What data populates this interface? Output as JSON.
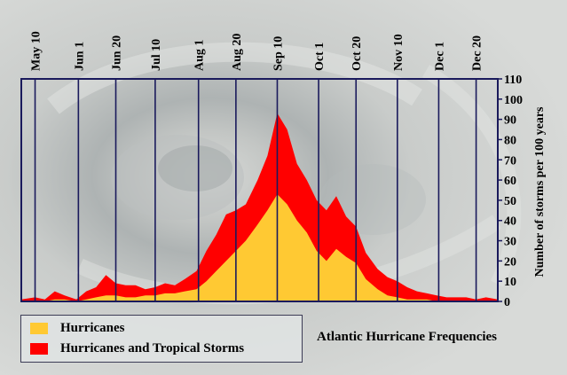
{
  "colors": {
    "hurricanes": "#ffc933",
    "storms": "#ff0000",
    "axis": "#1a1a5c",
    "text": "#000000"
  },
  "legend": {
    "hurricanes": "Hurricanes",
    "storms": "Hurricanes and Tropical Storms"
  },
  "chart_data": {
    "type": "area",
    "title": "Atlantic Hurricane Frequencies",
    "ylabel": "Number of storms per 100 years",
    "xlabel": "",
    "ylim": [
      0,
      110
    ],
    "x_range": [
      "May 3",
      "Dec 31"
    ],
    "yticks": [
      0,
      10,
      20,
      30,
      40,
      50,
      60,
      70,
      80,
      90,
      100,
      110
    ],
    "xticks": [
      "May 10",
      "Jun 1",
      "Jun 20",
      "Jul 10",
      "Aug 1",
      "Aug 20",
      "Sep 10",
      "Oct 1",
      "Oct 20",
      "Nov 10",
      "Dec 1",
      "Dec 20"
    ],
    "grid": "vertical lines at x ticks",
    "legend_position": "bottom-left",
    "series": [
      {
        "name": "Hurricanes and Tropical Storms",
        "x": [
          "May 3",
          "May 10",
          "May 15",
          "May 20",
          "May 25",
          "May 31",
          "Jun 5",
          "Jun 10",
          "Jun 15",
          "Jun 20",
          "Jun 25",
          "Jun 30",
          "Jul 5",
          "Jul 10",
          "Jul 15",
          "Jul 20",
          "Jul 25",
          "Jul 31",
          "Aug 5",
          "Aug 10",
          "Aug 15",
          "Aug 20",
          "Aug 25",
          "Aug 31",
          "Sep 5",
          "Sep 10",
          "Sep 15",
          "Sep 20",
          "Sep 25",
          "Sep 30",
          "Oct 5",
          "Oct 10",
          "Oct 15",
          "Oct 20",
          "Oct 25",
          "Oct 31",
          "Nov 5",
          "Nov 10",
          "Nov 15",
          "Nov 20",
          "Nov 25",
          "Nov 30",
          "Dec 5",
          "Dec 10",
          "Dec 15",
          "Dec 20",
          "Dec 25",
          "Dec 31"
        ],
        "values": [
          1,
          2,
          1,
          5,
          3,
          1,
          5,
          7,
          13,
          9,
          8,
          8,
          6,
          7,
          9,
          8,
          11,
          15,
          25,
          33,
          43,
          45,
          48,
          60,
          72,
          93,
          85,
          68,
          60,
          50,
          45,
          52,
          42,
          37,
          24,
          16,
          12,
          10,
          7,
          5,
          4,
          3,
          2,
          2,
          2,
          1,
          2,
          1
        ]
      },
      {
        "name": "Hurricanes",
        "x": [
          "May 3",
          "May 10",
          "May 15",
          "May 20",
          "May 25",
          "May 31",
          "Jun 5",
          "Jun 10",
          "Jun 15",
          "Jun 20",
          "Jun 25",
          "Jun 30",
          "Jul 5",
          "Jul 10",
          "Jul 15",
          "Jul 20",
          "Jul 25",
          "Jul 31",
          "Aug 5",
          "Aug 10",
          "Aug 15",
          "Aug 20",
          "Aug 25",
          "Aug 31",
          "Sep 5",
          "Sep 10",
          "Sep 15",
          "Sep 20",
          "Sep 25",
          "Sep 30",
          "Oct 5",
          "Oct 10",
          "Oct 15",
          "Oct 20",
          "Oct 25",
          "Oct 31",
          "Nov 5",
          "Nov 10",
          "Nov 15",
          "Nov 20",
          "Nov 25",
          "Nov 30",
          "Dec 5",
          "Dec 10",
          "Dec 15",
          "Dec 20",
          "Dec 25",
          "Dec 31"
        ],
        "values": [
          0,
          0,
          0,
          1,
          1,
          0,
          1,
          2,
          3,
          3,
          2,
          2,
          3,
          3,
          4,
          4,
          5,
          6,
          10,
          15,
          20,
          25,
          30,
          38,
          45,
          53,
          48,
          40,
          34,
          25,
          20,
          26,
          22,
          19,
          11,
          6,
          3,
          2,
          1,
          1,
          1,
          0,
          0,
          0,
          0,
          0,
          0,
          0
        ]
      }
    ]
  }
}
